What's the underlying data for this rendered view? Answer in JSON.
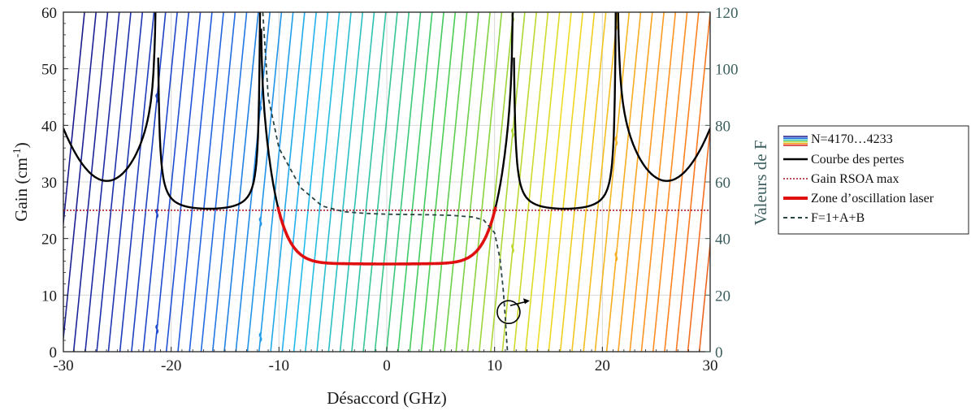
{
  "chart_data": {
    "type": "line",
    "xlabel": "Désaccord (GHz)",
    "ylabel": "Gain (cm",
    "ylabel_sup": "-1",
    "ylabel_end": ")",
    "y2label": "Valeurs de F",
    "xlim": [
      -30,
      30
    ],
    "ylim": [
      0,
      60
    ],
    "y2lim": [
      0,
      120
    ],
    "grid": true,
    "legend_position": "outside-right",
    "x_ticks": [
      "-30",
      "-20",
      "-10",
      "0",
      "10",
      "20",
      "30"
    ],
    "y_ticks": [
      "0",
      "10",
      "20",
      "30",
      "40",
      "50",
      "60"
    ],
    "y2_ticks": [
      "0",
      "20",
      "40",
      "60",
      "80",
      "100",
      "120"
    ],
    "mode_family": {
      "label": "N=4170…4233",
      "count": 64,
      "color_scale": [
        "#1a1a8c",
        "#2255dd",
        "#22bbee",
        "#44cc55",
        "#eedd22",
        "#ff8822",
        "#cc2222"
      ]
    },
    "loss_curve": {
      "label": "Courbe des pertes",
      "color": "#000000",
      "peaks_x": [
        -21.3,
        -11.7,
        11.7,
        21.3
      ],
      "minima": [
        {
          "x": -25.8,
          "y": 30.2
        },
        {
          "x": -15.8,
          "y": 25.3
        },
        {
          "x": 0,
          "y": 15.5
        },
        {
          "x": 15.8,
          "y": 25.3
        },
        {
          "x": 25.8,
          "y": 30.2
        }
      ]
    },
    "gain_max": {
      "label": "Gain RSOA max",
      "color": "#a01020",
      "value": 25
    },
    "laser_zone": {
      "label": "Zone d’oscillation laser",
      "color": "#e01010",
      "x_range": [
        -10.1,
        10.1
      ]
    },
    "F_curve": {
      "label": "F=1+A+B",
      "color": "#2a4444",
      "axis": "right",
      "points": [
        [
          -11.5,
          120
        ],
        [
          -11.0,
          90
        ],
        [
          -10.0,
          72
        ],
        [
          -8.0,
          58
        ],
        [
          -6.0,
          51.5
        ],
        [
          -4.0,
          49.5
        ],
        [
          -2.0,
          48.9
        ],
        [
          0.0,
          48.6
        ],
        [
          2.0,
          48.5
        ],
        [
          4.0,
          48.4
        ],
        [
          6.0,
          48.2
        ],
        [
          8.0,
          47.6
        ],
        [
          9.0,
          46.5
        ],
        [
          10.0,
          42.0
        ],
        [
          10.5,
          33.0
        ],
        [
          10.8,
          22.0
        ],
        [
          11.0,
          12.0
        ],
        [
          11.1,
          5.0
        ],
        [
          11.2,
          0
        ]
      ]
    }
  }
}
